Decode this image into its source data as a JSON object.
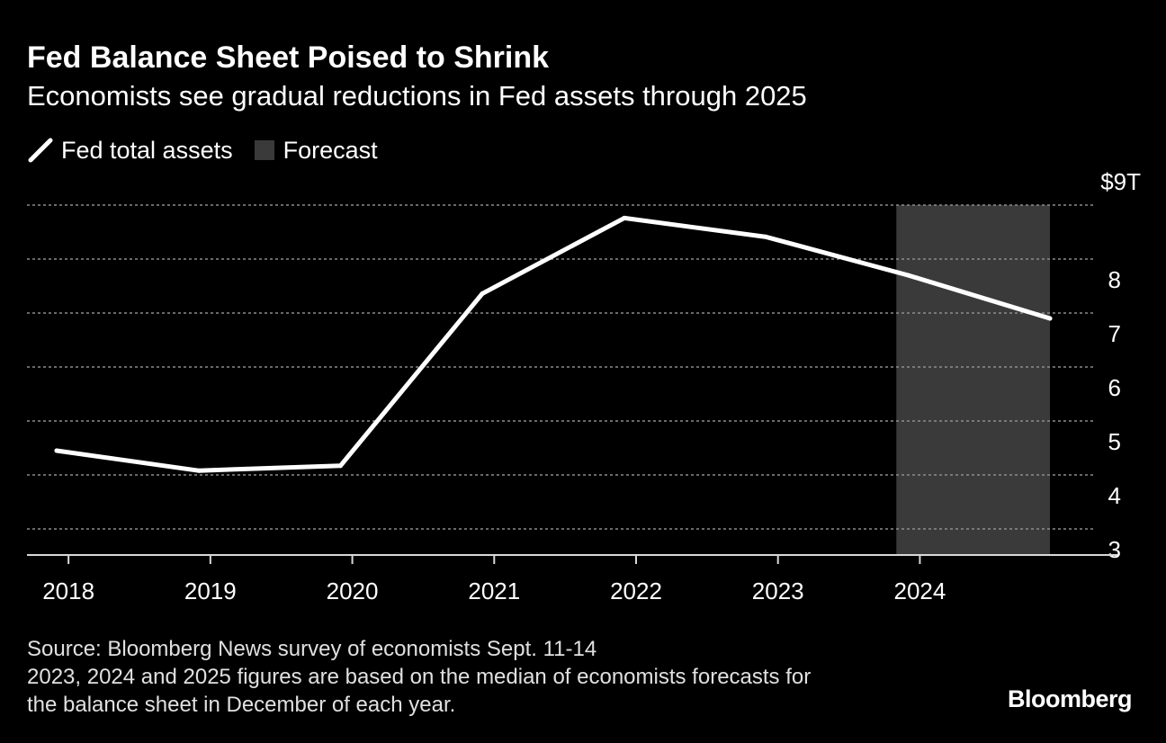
{
  "header": {
    "title": "Fed Balance Sheet Poised to Shrink",
    "subtitle": "Economists see gradual reductions in Fed assets through 2025"
  },
  "legend": {
    "line_label": "Fed total assets",
    "forecast_label": "Forecast"
  },
  "colors": {
    "background": "#000000",
    "line": "#ffffff",
    "forecast_band": "#3a3a3a",
    "grid": "#8c8c8c",
    "text": "#ffffff"
  },
  "chart_data": {
    "type": "line",
    "title": "Fed Balance Sheet Poised to Shrink",
    "subtitle": "Economists see gradual reductions in Fed assets through 2025",
    "xlabel": "",
    "ylabel": "",
    "x": [
      "2017-12",
      "2018-12",
      "2019-12",
      "2020-12",
      "2021-12",
      "2022-12",
      "2023-12",
      "2024-12"
    ],
    "series": [
      {
        "name": "Fed total assets",
        "values": [
          4.45,
          4.08,
          4.17,
          7.36,
          8.76,
          8.41,
          7.7,
          6.9
        ]
      }
    ],
    "forecast_range": [
      "2023-12",
      "2024-12"
    ],
    "x_tick_labels": [
      "2018",
      "2019",
      "2020",
      "2021",
      "2022",
      "2023",
      "2024"
    ],
    "y_tick_labels": [
      "$9T",
      "8",
      "7",
      "6",
      "5",
      "4",
      "3"
    ],
    "y_ticks": [
      9,
      8,
      7,
      6,
      5,
      4,
      3
    ],
    "ylim": [
      2.5,
      9
    ],
    "grid": "horizontal dotted",
    "legend_position": "top-left"
  },
  "footer": {
    "source_lines": [
      "Source: Bloomberg News survey of economists Sept. 11-14",
      "2023, 2024 and 2025 figures are based on the median of economists forecasts for",
      "the balance sheet in December of each year."
    ],
    "brand": "Bloomberg"
  }
}
